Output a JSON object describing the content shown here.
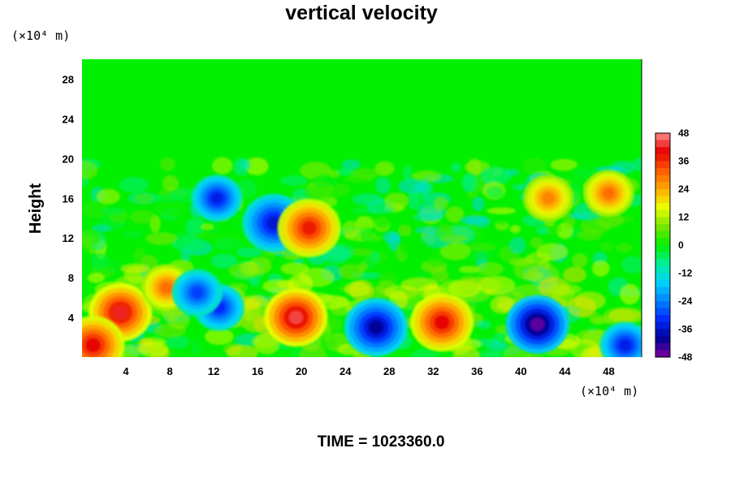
{
  "chart_data": {
    "type": "heatmap",
    "title": "vertical velocity",
    "ylabel": "Height",
    "xlabel": "",
    "y_unit": "(×10⁴ m)",
    "x_unit": "(×10⁴ m)",
    "xlim": [
      0,
      51
    ],
    "ylim": [
      0,
      30
    ],
    "x_ticks": [
      "4",
      "8",
      "12",
      "16",
      "20",
      "24",
      "28",
      "32",
      "36",
      "40",
      "44",
      "48"
    ],
    "x_tick_values": [
      4,
      8,
      12,
      16,
      20,
      24,
      28,
      32,
      36,
      40,
      44,
      48
    ],
    "y_ticks": [
      "4",
      "8",
      "12",
      "16",
      "20",
      "24",
      "28"
    ],
    "y_tick_values": [
      4,
      8,
      12,
      16,
      20,
      24,
      28
    ],
    "colorbar": {
      "min": -48,
      "max": 48,
      "ticks": [
        "48",
        "36",
        "24",
        "12",
        "0",
        "-12",
        "-24",
        "-36",
        "-48"
      ],
      "tick_values": [
        48,
        36,
        24,
        12,
        0,
        -12,
        -24,
        -36,
        -48
      ]
    },
    "features": [
      {
        "x": 3.5,
        "y": 4.5,
        "value": 42
      },
      {
        "x": 1.0,
        "y": 1.2,
        "value": 40
      },
      {
        "x": 7.7,
        "y": 7.0,
        "value": 30
      },
      {
        "x": 12.5,
        "y": 5.0,
        "value": -32
      },
      {
        "x": 10.5,
        "y": 6.5,
        "value": -30
      },
      {
        "x": 19.5,
        "y": 4.0,
        "value": 44
      },
      {
        "x": 26.8,
        "y": 3.0,
        "value": -40
      },
      {
        "x": 32.8,
        "y": 3.5,
        "value": 40
      },
      {
        "x": 41.5,
        "y": 3.3,
        "value": -46
      },
      {
        "x": 49.5,
        "y": 1.2,
        "value": -34
      },
      {
        "x": 17.5,
        "y": 13.5,
        "value": -36
      },
      {
        "x": 20.7,
        "y": 13.0,
        "value": 38
      },
      {
        "x": 12.3,
        "y": 16.0,
        "value": -34
      },
      {
        "x": 48.0,
        "y": 16.5,
        "value": 30
      },
      {
        "x": 42.5,
        "y": 16.0,
        "value": 28
      }
    ],
    "grid": false,
    "legend": "right colorbar"
  },
  "footer": {
    "time_label": "TIME = 1023360.0"
  }
}
